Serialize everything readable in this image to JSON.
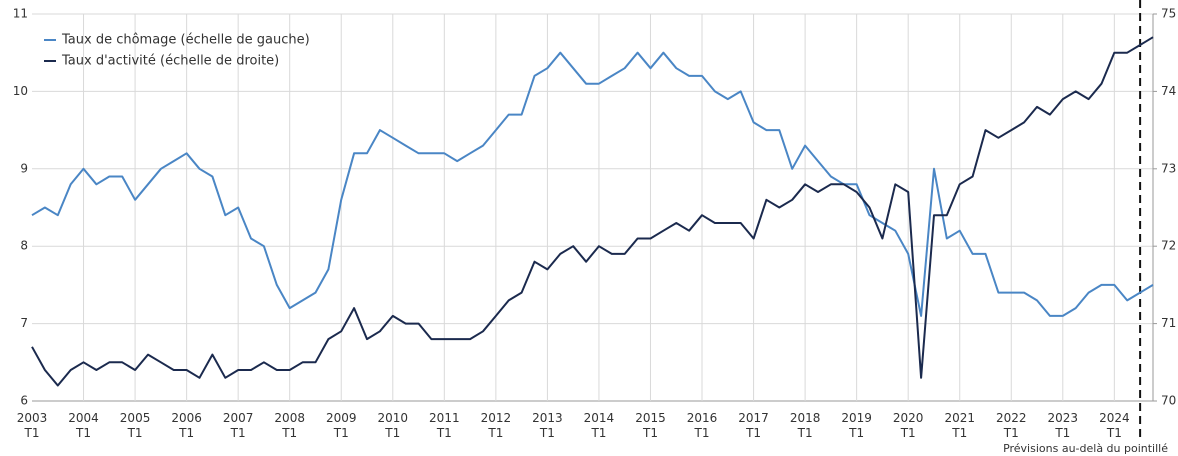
{
  "chart_data": {
    "type": "line",
    "categories": [
      "2003 T1",
      null,
      null,
      null,
      "2004 T1",
      null,
      null,
      null,
      "2005 T1",
      null,
      null,
      null,
      "2006 T1",
      null,
      null,
      null,
      "2007 T1",
      null,
      null,
      null,
      "2008 T1",
      null,
      null,
      null,
      "2009 T1",
      null,
      null,
      null,
      "2010 T1",
      null,
      null,
      null,
      "2011 T1",
      null,
      null,
      null,
      "2012 T1",
      null,
      null,
      null,
      "2013 T1",
      null,
      null,
      null,
      "2014 T1",
      null,
      null,
      null,
      "2015 T1",
      null,
      null,
      null,
      "2016 T1",
      null,
      null,
      null,
      "2017 T1",
      null,
      null,
      null,
      "2018 T1",
      null,
      null,
      null,
      "2019 T1",
      null,
      null,
      null,
      "2020 T1",
      null,
      null,
      null,
      "2021 T1",
      null,
      null,
      null,
      "2022 T1",
      null,
      null,
      null,
      "2023 T1",
      null,
      null,
      null,
      "2024 T1",
      null,
      null,
      null
    ],
    "series": [
      {
        "name": "Taux de chômage (échelle de gauche)",
        "color": "#4a86c5",
        "values": [
          8.4,
          8.5,
          8.4,
          8.8,
          9.0,
          8.8,
          8.9,
          8.9,
          8.6,
          8.8,
          9.0,
          9.1,
          9.2,
          9.0,
          8.9,
          8.4,
          8.5,
          8.1,
          8.0,
          7.5,
          7.2,
          7.3,
          7.4,
          7.7,
          8.6,
          9.2,
          9.2,
          9.5,
          9.4,
          9.3,
          9.2,
          9.2,
          9.2,
          9.1,
          9.2,
          9.3,
          9.5,
          9.7,
          9.7,
          10.2,
          10.3,
          10.5,
          10.3,
          10.1,
          10.1,
          10.2,
          10.3,
          10.5,
          10.3,
          10.5,
          10.3,
          10.2,
          10.2,
          10.0,
          9.9,
          10.0,
          9.6,
          9.5,
          9.5,
          9.0,
          9.3,
          9.1,
          8.9,
          8.8,
          8.8,
          8.4,
          8.3,
          8.2,
          7.9,
          7.1,
          9.0,
          8.1,
          8.2,
          7.9,
          7.9,
          7.4,
          7.4,
          7.4,
          7.3,
          7.1,
          7.1,
          7.2,
          7.4,
          7.5,
          7.5,
          7.3,
          7.4,
          7.5
        ]
      },
      {
        "name": "Taux d'activité (échelle de droite)",
        "color": "#1b2a4e",
        "axis": "y2",
        "values": [
          70.7,
          70.4,
          70.2,
          70.4,
          70.5,
          70.4,
          70.5,
          70.5,
          70.4,
          70.6,
          70.5,
          70.4,
          70.4,
          70.3,
          70.6,
          70.3,
          70.4,
          70.4,
          70.5,
          70.4,
          70.4,
          70.5,
          70.5,
          70.8,
          70.9,
          71.2,
          70.8,
          70.9,
          71.1,
          71.0,
          71.0,
          70.8,
          70.8,
          70.8,
          70.8,
          70.9,
          71.1,
          71.3,
          71.4,
          71.8,
          71.7,
          71.9,
          72.0,
          71.8,
          72.0,
          71.9,
          71.9,
          72.1,
          72.1,
          72.2,
          72.3,
          72.2,
          72.4,
          72.3,
          72.3,
          72.3,
          72.1,
          72.6,
          72.5,
          72.6,
          72.8,
          72.7,
          72.8,
          72.8,
          72.7,
          72.5,
          72.1,
          72.8,
          72.7,
          70.3,
          72.4,
          72.4,
          72.8,
          72.9,
          73.5,
          73.4,
          73.5,
          73.6,
          73.8,
          73.7,
          73.9,
          74.0,
          73.9,
          74.1,
          74.5,
          74.5,
          74.6,
          74.7
        ]
      }
    ],
    "ylim": [
      6,
      11
    ],
    "yticks": [
      6,
      7,
      8,
      9,
      10,
      11
    ],
    "y2lim": [
      70,
      75
    ],
    "y2ticks": [
      70,
      71,
      72,
      73,
      74,
      75
    ],
    "grid": true,
    "legend": "top-left",
    "forecast_from": 86,
    "note": "Prévisions au-delà du pointillé"
  }
}
